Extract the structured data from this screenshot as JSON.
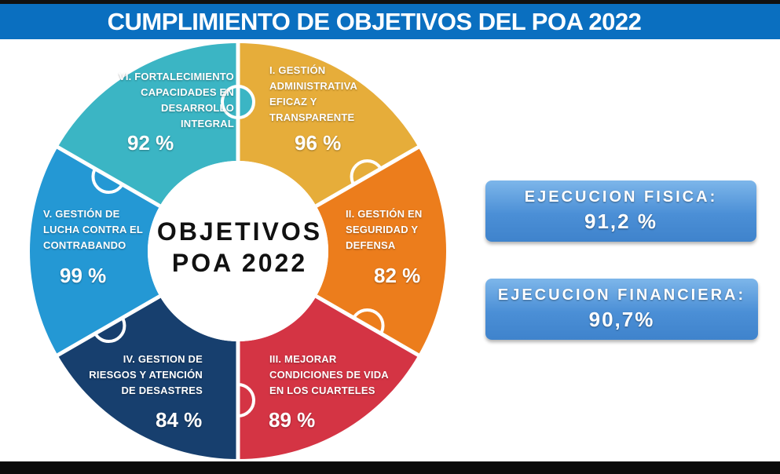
{
  "header": {
    "title": "CUMPLIMIENTO DE OBJETIVOS DEL POA 2022"
  },
  "center": {
    "line1": "OBJETIVOS",
    "line2": "POA 2022"
  },
  "segments": [
    {
      "label": "I. GESTIÓN\nADMINISTRATIVA\nEFICAZ Y\nTRANSPARENTE",
      "value": "96 %",
      "percent": 96,
      "color": "#e6ad3a"
    },
    {
      "label": "II. GESTIÓN EN\nSEGURIDAD Y\nDEFENSA",
      "value": "82 %",
      "percent": 82,
      "color": "#ec7d1c"
    },
    {
      "label": "III. MEJORAR\nCONDICIONES DE VIDA\nEN LOS CUARTELES",
      "value": "89 %",
      "percent": 89,
      "color": "#d43444"
    },
    {
      "label": "IV. GESTION DE\nRIESGOS Y ATENCIÓN\nDE DESASTRES",
      "value": "84 %",
      "percent": 84,
      "color": "#173f6e"
    },
    {
      "label": "V. GESTIÓN DE\nLUCHA CONTRA EL\nCONTRABANDO",
      "value": "99 %",
      "percent": 99,
      "color": "#2498d4"
    },
    {
      "label": "VI. FORTALECIMIENTO\nCAPACIDADES EN\nDESARROLLO\nINTEGRAL",
      "value": "92 %",
      "percent": 92,
      "color": "#3bb5c4"
    }
  ],
  "summary": {
    "fisica": {
      "label": "EJECUCION FISICA:",
      "value": "91,2 %"
    },
    "financiera": {
      "label": "EJECUCION FINANCIERA:",
      "value": "90,7%"
    }
  }
}
